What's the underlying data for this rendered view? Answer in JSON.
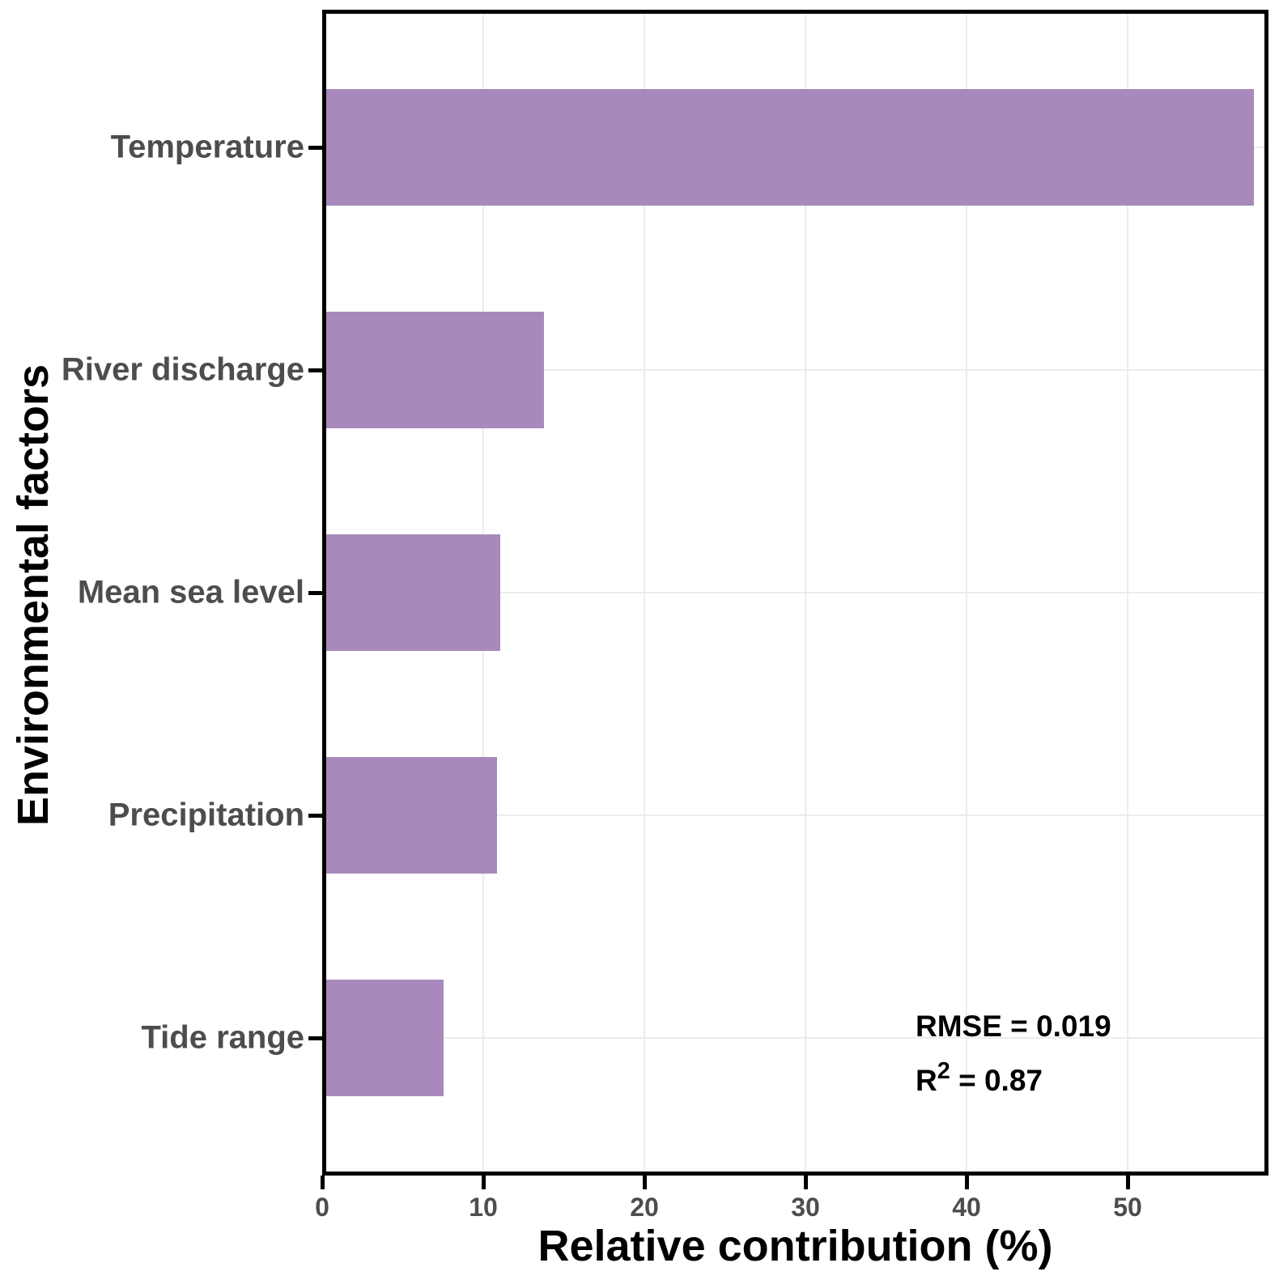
{
  "chart_data": {
    "type": "bar",
    "orientation": "horizontal",
    "title": "",
    "xlabel": "Relative contribution (%)",
    "ylabel": "Environmental factors",
    "categories": [
      "Temperature",
      "River discharge",
      "Mean sea level",
      "Precipitation",
      "Tide range"
    ],
    "values": [
      57.6,
      13.5,
      10.8,
      10.6,
      7.3
    ],
    "x_ticks": [
      0,
      10,
      20,
      30,
      40,
      50
    ],
    "xlim": [
      0,
      58.5
    ],
    "grid": "major gridlines only, light gray",
    "legend": "none",
    "annotations": [
      "RMSE = 0.019",
      "R² = 0.87"
    ]
  },
  "annotation": {
    "rmse": "RMSE = 0.019",
    "r2_base": "R",
    "r2_sup": "2",
    "r2_rest": " = 0.87"
  },
  "colors": {
    "bar": "#a78abb",
    "axis_text": "#4d4d4d",
    "grid": "#ececec",
    "axis_line": "#000000"
  }
}
